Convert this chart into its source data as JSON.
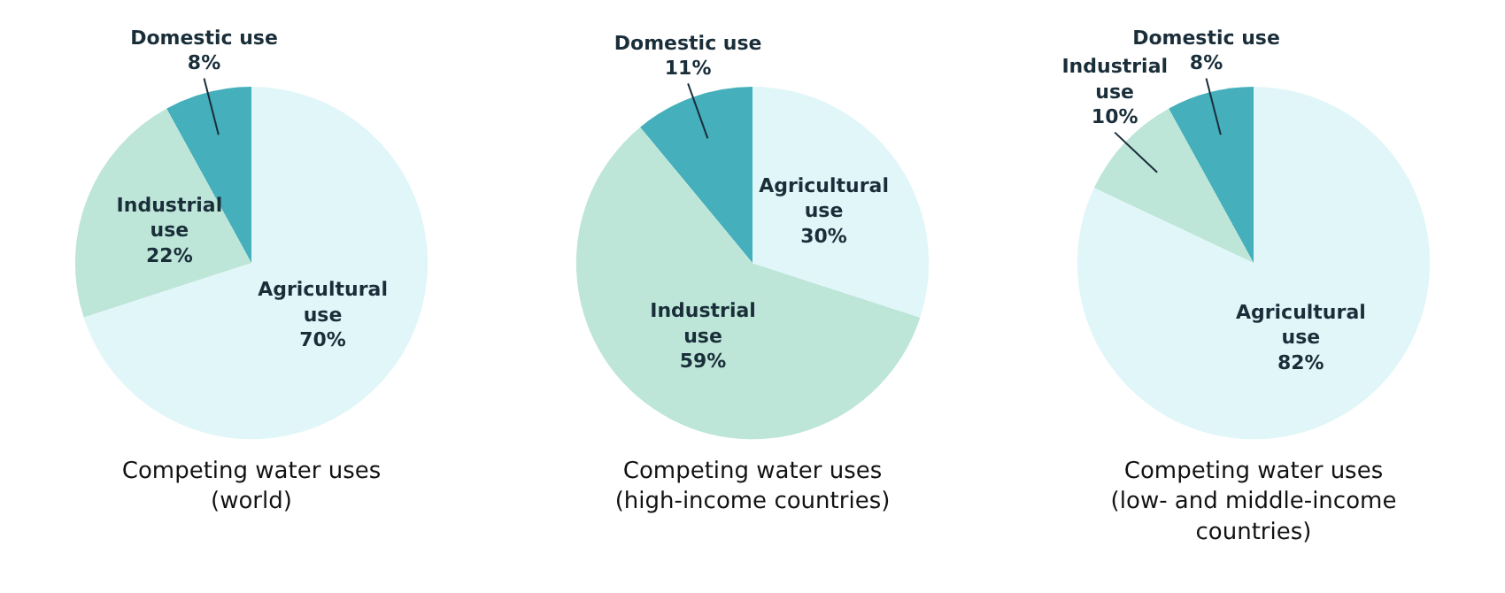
{
  "chart_data": [
    {
      "type": "pie",
      "title": "Competing water uses\n(world)",
      "categories": [
        "Domestic use",
        "Industrial\nuse",
        "Agricultural\nuse"
      ],
      "values": [
        8,
        22,
        70
      ],
      "value_labels": [
        "8%",
        "22%",
        "70%"
      ],
      "colors": [
        "#45afbb",
        "#bde6d8",
        "#e1f6f8"
      ]
    },
    {
      "type": "pie",
      "title": "Competing water uses\n(high-income countries)",
      "categories": [
        "Domestic use",
        "Industrial\nuse",
        "Agricultural\nuse"
      ],
      "values": [
        11,
        59,
        30
      ],
      "value_labels": [
        "11%",
        "59%",
        "30%"
      ],
      "colors": [
        "#45afbb",
        "#bde6d8",
        "#e1f6f8"
      ]
    },
    {
      "type": "pie",
      "title": "Competing water uses\n(low- and middle-income\ncountries)",
      "categories": [
        "Domestic use",
        "Industrial\nuse",
        "Agricultural\nuse"
      ],
      "values": [
        8,
        10,
        82
      ],
      "value_labels": [
        "8%",
        "10%",
        "82%"
      ],
      "colors": [
        "#45afbb",
        "#bde6d8",
        "#e1f6f8"
      ]
    }
  ]
}
